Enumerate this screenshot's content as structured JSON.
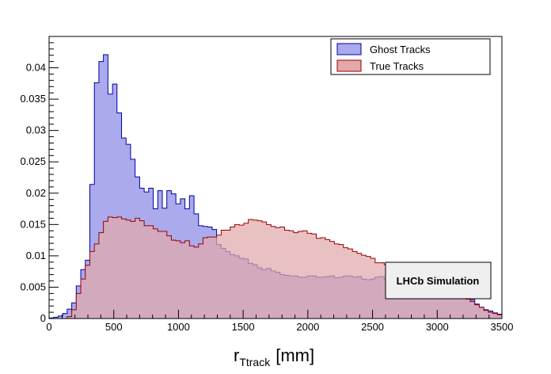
{
  "chart_data": {
    "type": "area",
    "title": "",
    "xlabel": "r",
    "xlabel_subscript": "Ttrack",
    "xlabel_unit": "[mm]",
    "ylabel": "",
    "xlim": [
      0,
      3500
    ],
    "ylim": [
      0,
      0.045
    ],
    "bin_width": 35,
    "x_ticks": [
      0,
      500,
      1000,
      1500,
      2000,
      2500,
      3000,
      3500
    ],
    "x_tick_labels": [
      "0",
      "500",
      "1000",
      "1500",
      "2000",
      "2500",
      "3000",
      "3500"
    ],
    "y_ticks": [
      0,
      0.005,
      0.01,
      0.015,
      0.02,
      0.025,
      0.03,
      0.035,
      0.04
    ],
    "y_tick_labels": [
      "0",
      "0.005",
      "0.01",
      "0.015",
      "0.02",
      "0.025",
      "0.03",
      "0.035",
      "0.04"
    ],
    "legend_position": "top-right",
    "annotation": "LHCb Simulation",
    "series": [
      {
        "name": "Ghost Tracks",
        "color": "#aaaaec",
        "edge_color": "#0000aa",
        "values": [
          0.0001,
          0.0002,
          0.0004,
          0.0008,
          0.0015,
          0.0025,
          0.0052,
          0.0078,
          0.0093,
          0.0214,
          0.0376,
          0.041,
          0.0421,
          0.0358,
          0.0374,
          0.0328,
          0.0288,
          0.0278,
          0.0254,
          0.0226,
          0.0208,
          0.0202,
          0.0208,
          0.0175,
          0.0204,
          0.0176,
          0.0204,
          0.0199,
          0.0183,
          0.0191,
          0.0175,
          0.0196,
          0.0167,
          0.0148,
          0.0147,
          0.0146,
          0.0142,
          0.0118,
          0.0112,
          0.0107,
          0.0102,
          0.01,
          0.0096,
          0.0095,
          0.0088,
          0.0086,
          0.0081,
          0.0078,
          0.008,
          0.0076,
          0.0074,
          0.007,
          0.0069,
          0.0068,
          0.0068,
          0.0066,
          0.0066,
          0.0068,
          0.0068,
          0.0066,
          0.0066,
          0.0067,
          0.0068,
          0.0065,
          0.0066,
          0.0068,
          0.0068,
          0.0066,
          0.0067,
          0.0063,
          0.0062,
          0.0063,
          0.0066,
          0.0067,
          0.0062,
          0.0061,
          0.0061,
          0.0057,
          0.0057,
          0.0056,
          0.0055,
          0.0055,
          0.0054,
          0.0051,
          0.005,
          0.0047,
          0.0049,
          0.0047,
          0.0046,
          0.0045,
          0.0039,
          0.0038,
          0.0034,
          0.003,
          0.0023,
          0.0018,
          0.0014,
          0.0012,
          0.0009,
          0.0007
        ]
      },
      {
        "name": "True Tracks",
        "color": "#e2a9aa",
        "edge_color": "#990000",
        "values": [
          0.0,
          0.0,
          0.0,
          0.0,
          0.0003,
          0.0014,
          0.004,
          0.0063,
          0.0085,
          0.0107,
          0.0119,
          0.0137,
          0.0155,
          0.0162,
          0.0161,
          0.0162,
          0.0159,
          0.0157,
          0.0155,
          0.016,
          0.0156,
          0.0148,
          0.0148,
          0.0143,
          0.0139,
          0.0139,
          0.0132,
          0.0125,
          0.0124,
          0.0121,
          0.0124,
          0.0116,
          0.0114,
          0.0119,
          0.0129,
          0.013,
          0.013,
          0.0133,
          0.0141,
          0.0141,
          0.0146,
          0.015,
          0.0149,
          0.0152,
          0.0158,
          0.0157,
          0.0156,
          0.0154,
          0.015,
          0.0147,
          0.0145,
          0.0146,
          0.0141,
          0.014,
          0.0137,
          0.0139,
          0.014,
          0.0136,
          0.0135,
          0.0128,
          0.0129,
          0.0126,
          0.0123,
          0.0119,
          0.0118,
          0.0113,
          0.0111,
          0.0107,
          0.0104,
          0.0101,
          0.0099,
          0.0096,
          0.0089,
          0.0089,
          0.0086,
          0.0084,
          0.0081,
          0.0076,
          0.0075,
          0.0073,
          0.007,
          0.0068,
          0.0065,
          0.0061,
          0.0059,
          0.0056,
          0.0053,
          0.0051,
          0.0048,
          0.0043,
          0.0039,
          0.0035,
          0.0031,
          0.0027,
          0.0022,
          0.0018,
          0.0013,
          0.001,
          0.0008,
          0.0006
        ]
      }
    ]
  }
}
